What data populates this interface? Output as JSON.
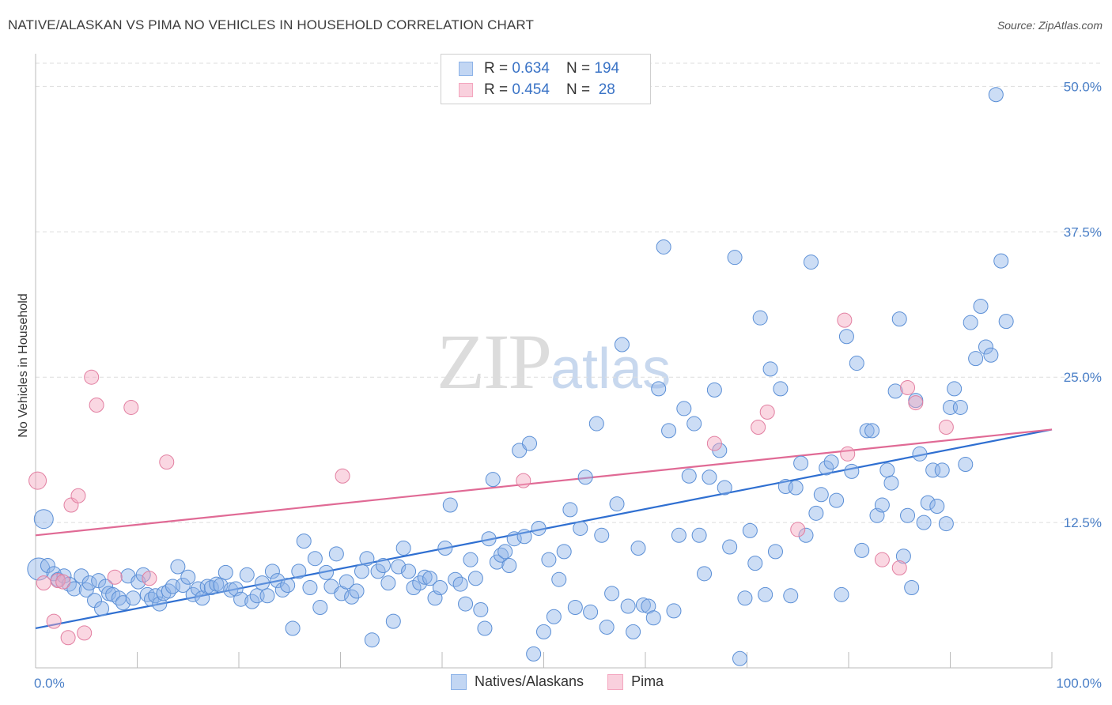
{
  "title": "NATIVE/ALASKAN VS PIMA NO VEHICLES IN HOUSEHOLD CORRELATION CHART",
  "source": "Source: ZipAtlas.com",
  "watermark": {
    "zip": "ZIP",
    "atlas": "atlas"
  },
  "legend": {
    "rows": [
      {
        "r_label": "R = ",
        "r_value": "0.634",
        "n_label": "N = ",
        "n_value": "194",
        "color": "#8db3e8"
      },
      {
        "r_label": "R = ",
        "r_value": "0.454",
        "n_label": "N = ",
        "n_value": " 28",
        "color": "#f4a6bf"
      }
    ]
  },
  "bottom_legend": [
    {
      "label": "Natives/Alaskans",
      "color": "#8db3e8"
    },
    {
      "label": "Pima",
      "color": "#f4a6bf"
    }
  ],
  "chart_data": {
    "type": "scatter",
    "title": "NATIVE/ALASKAN VS PIMA NO VEHICLES IN HOUSEHOLD CORRELATION CHART",
    "xlabel": "",
    "ylabel": "No Vehicles in Household",
    "xlim": [
      0,
      100
    ],
    "ylim": [
      0,
      52
    ],
    "x_tick_labels": [
      "0.0%",
      "100.0%"
    ],
    "y_ticks": [
      12.5,
      25.0,
      37.5,
      50.0
    ],
    "y_tick_labels": [
      "12.5%",
      "25.0%",
      "37.5%",
      "50.0%"
    ],
    "grid": "horizontal dashed",
    "legend_position": "top-center",
    "series": [
      {
        "name": "Natives/Alaskans",
        "color": "#8db3e8",
        "stroke": "#5b8fd6",
        "trend": {
          "x": [
            0,
            100
          ],
          "y": [
            3.4,
            20.5
          ],
          "color": "#2f6fd1"
        },
        "points": [
          [
            0.3,
            8.5
          ],
          [
            0.8,
            12.8
          ],
          [
            1.2,
            8.8
          ],
          [
            1.8,
            8.1
          ],
          [
            2.2,
            7.6
          ],
          [
            2.8,
            7.9
          ],
          [
            3.3,
            7.2
          ],
          [
            3.8,
            6.8
          ],
          [
            4.5,
            7.9
          ],
          [
            5,
            6.7
          ],
          [
            5.3,
            7.3
          ],
          [
            5.8,
            5.8
          ],
          [
            6.2,
            7.5
          ],
          [
            6.5,
            5.1
          ],
          [
            6.9,
            7.0
          ],
          [
            7.2,
            6.4
          ],
          [
            7.6,
            6.3
          ],
          [
            8.2,
            6.0
          ],
          [
            8.6,
            5.6
          ],
          [
            9.1,
            7.9
          ],
          [
            9.6,
            6.0
          ],
          [
            10.1,
            7.4
          ],
          [
            10.6,
            8.0
          ],
          [
            11.0,
            6.3
          ],
          [
            11.4,
            5.9
          ],
          [
            11.8,
            6.2
          ],
          [
            12.2,
            5.5
          ],
          [
            12.6,
            6.4
          ],
          [
            13.1,
            6.6
          ],
          [
            13.5,
            7.0
          ],
          [
            14.0,
            8.7
          ],
          [
            14.5,
            7.1
          ],
          [
            15.0,
            7.8
          ],
          [
            15.5,
            6.3
          ],
          [
            16.0,
            6.8
          ],
          [
            16.4,
            6.0
          ],
          [
            16.9,
            7.0
          ],
          [
            17.3,
            6.9
          ],
          [
            17.8,
            7.2
          ],
          [
            18.2,
            7.1
          ],
          [
            18.7,
            8.2
          ],
          [
            19.2,
            6.7
          ],
          [
            19.7,
            6.8
          ],
          [
            20.2,
            5.9
          ],
          [
            20.8,
            8.0
          ],
          [
            21.3,
            5.7
          ],
          [
            21.8,
            6.2
          ],
          [
            22.3,
            7.3
          ],
          [
            22.8,
            6.2
          ],
          [
            23.3,
            8.3
          ],
          [
            23.8,
            7.5
          ],
          [
            24.3,
            6.7
          ],
          [
            24.8,
            7.1
          ],
          [
            25.3,
            3.4
          ],
          [
            25.9,
            8.3
          ],
          [
            26.4,
            10.9
          ],
          [
            27.0,
            6.9
          ],
          [
            27.5,
            9.4
          ],
          [
            28.0,
            5.2
          ],
          [
            28.6,
            8.2
          ],
          [
            29.1,
            7.0
          ],
          [
            29.6,
            9.8
          ],
          [
            30.1,
            6.4
          ],
          [
            30.6,
            7.4
          ],
          [
            31.1,
            6.1
          ],
          [
            31.6,
            6.6
          ],
          [
            32.1,
            8.3
          ],
          [
            32.6,
            9.4
          ],
          [
            33.1,
            2.4
          ],
          [
            33.7,
            8.3
          ],
          [
            34.2,
            8.8
          ],
          [
            34.7,
            7.3
          ],
          [
            35.2,
            4.0
          ],
          [
            35.7,
            8.7
          ],
          [
            36.2,
            10.3
          ],
          [
            36.7,
            8.3
          ],
          [
            37.2,
            6.9
          ],
          [
            37.8,
            7.3
          ],
          [
            38.3,
            7.8
          ],
          [
            38.8,
            7.7
          ],
          [
            39.3,
            6.0
          ],
          [
            39.8,
            6.9
          ],
          [
            40.3,
            10.3
          ],
          [
            40.8,
            14.0
          ],
          [
            41.3,
            7.6
          ],
          [
            41.8,
            7.2
          ],
          [
            42.3,
            5.5
          ],
          [
            42.8,
            9.3
          ],
          [
            43.3,
            7.7
          ],
          [
            43.8,
            5.0
          ],
          [
            44.2,
            3.4
          ],
          [
            44.6,
            11.1
          ],
          [
            45.0,
            16.2
          ],
          [
            45.4,
            9.1
          ],
          [
            45.8,
            9.7
          ],
          [
            46.2,
            10.0
          ],
          [
            46.6,
            8.8
          ],
          [
            47.1,
            11.1
          ],
          [
            47.6,
            18.7
          ],
          [
            48.1,
            11.3
          ],
          [
            48.6,
            19.3
          ],
          [
            49.0,
            1.2
          ],
          [
            49.5,
            12.0
          ],
          [
            50.0,
            3.1
          ],
          [
            50.5,
            9.3
          ],
          [
            51.0,
            4.4
          ],
          [
            51.5,
            7.6
          ],
          [
            52.0,
            10.0
          ],
          [
            52.6,
            13.6
          ],
          [
            53.1,
            5.2
          ],
          [
            53.6,
            12.0
          ],
          [
            54.1,
            16.4
          ],
          [
            54.6,
            4.8
          ],
          [
            55.2,
            21.0
          ],
          [
            55.7,
            11.4
          ],
          [
            56.2,
            3.5
          ],
          [
            56.7,
            6.4
          ],
          [
            57.2,
            14.1
          ],
          [
            57.7,
            27.8
          ],
          [
            58.3,
            5.3
          ],
          [
            58.8,
            3.1
          ],
          [
            59.3,
            10.3
          ],
          [
            59.8,
            5.4
          ],
          [
            60.3,
            5.3
          ],
          [
            60.8,
            4.3
          ],
          [
            61.3,
            24.0
          ],
          [
            61.8,
            36.2
          ],
          [
            62.3,
            20.4
          ],
          [
            62.8,
            4.9
          ],
          [
            63.3,
            11.4
          ],
          [
            63.8,
            22.3
          ],
          [
            64.3,
            16.5
          ],
          [
            64.8,
            21.0
          ],
          [
            65.3,
            11.4
          ],
          [
            65.8,
            8.1
          ],
          [
            66.3,
            16.4
          ],
          [
            66.8,
            23.9
          ],
          [
            67.3,
            18.7
          ],
          [
            67.8,
            15.5
          ],
          [
            68.3,
            10.4
          ],
          [
            68.8,
            35.3
          ],
          [
            69.3,
            0.8
          ],
          [
            69.8,
            6.0
          ],
          [
            70.3,
            11.8
          ],
          [
            70.8,
            9.0
          ],
          [
            71.3,
            30.1
          ],
          [
            71.8,
            6.3
          ],
          [
            72.3,
            25.7
          ],
          [
            72.8,
            10.0
          ],
          [
            73.3,
            24.0
          ],
          [
            73.8,
            15.6
          ],
          [
            74.3,
            6.2
          ],
          [
            74.8,
            15.5
          ],
          [
            75.3,
            17.6
          ],
          [
            75.8,
            11.4
          ],
          [
            76.3,
            34.9
          ],
          [
            76.8,
            13.3
          ],
          [
            77.3,
            14.9
          ],
          [
            77.8,
            17.2
          ],
          [
            78.3,
            17.7
          ],
          [
            78.8,
            14.4
          ],
          [
            79.3,
            6.3
          ],
          [
            79.8,
            28.5
          ],
          [
            80.3,
            16.9
          ],
          [
            80.8,
            26.2
          ],
          [
            81.3,
            10.1
          ],
          [
            81.8,
            20.4
          ],
          [
            82.3,
            20.4
          ],
          [
            82.8,
            13.1
          ],
          [
            83.3,
            14.0
          ],
          [
            83.8,
            17.0
          ],
          [
            84.2,
            15.9
          ],
          [
            84.6,
            23.8
          ],
          [
            85.0,
            30.0
          ],
          [
            85.4,
            9.6
          ],
          [
            85.8,
            13.1
          ],
          [
            86.2,
            6.9
          ],
          [
            86.6,
            23.0
          ],
          [
            87.0,
            18.4
          ],
          [
            87.4,
            12.5
          ],
          [
            87.8,
            14.2
          ],
          [
            88.3,
            17.0
          ],
          [
            88.7,
            13.9
          ],
          [
            89.2,
            17.0
          ],
          [
            89.6,
            12.4
          ],
          [
            90.0,
            22.4
          ],
          [
            90.4,
            24.0
          ],
          [
            91.0,
            22.4
          ],
          [
            91.5,
            17.5
          ],
          [
            92.0,
            29.7
          ],
          [
            92.5,
            26.6
          ],
          [
            93.0,
            31.1
          ],
          [
            93.5,
            27.6
          ],
          [
            94.0,
            26.9
          ],
          [
            94.5,
            49.3
          ],
          [
            95.0,
            35.0
          ],
          [
            95.5,
            29.8
          ]
        ]
      },
      {
        "name": "Pima",
        "color": "#f4a6bf",
        "stroke": "#e27fa1",
        "trend": {
          "x": [
            0,
            100
          ],
          "y": [
            11.4,
            20.5
          ],
          "color": "#e06a95"
        },
        "points": [
          [
            0.2,
            16.1
          ],
          [
            0.8,
            7.3
          ],
          [
            1.8,
            4.0
          ],
          [
            2.2,
            7.5
          ],
          [
            2.7,
            7.4
          ],
          [
            3.2,
            2.6
          ],
          [
            3.5,
            14.0
          ],
          [
            4.2,
            14.8
          ],
          [
            4.8,
            3.0
          ],
          [
            5.5,
            25.0
          ],
          [
            6.0,
            22.6
          ],
          [
            7.8,
            7.8
          ],
          [
            9.4,
            22.4
          ],
          [
            11.2,
            7.7
          ],
          [
            12.9,
            17.7
          ],
          [
            30.2,
            16.5
          ],
          [
            48.0,
            16.1
          ],
          [
            66.8,
            19.3
          ],
          [
            71.1,
            20.7
          ],
          [
            75.0,
            11.9
          ],
          [
            79.6,
            29.9
          ],
          [
            79.9,
            18.4
          ],
          [
            83.3,
            9.3
          ],
          [
            85.0,
            8.6
          ],
          [
            85.8,
            24.1
          ],
          [
            86.6,
            22.8
          ],
          [
            89.6,
            20.7
          ],
          [
            72.0,
            22.0
          ]
        ]
      }
    ]
  }
}
